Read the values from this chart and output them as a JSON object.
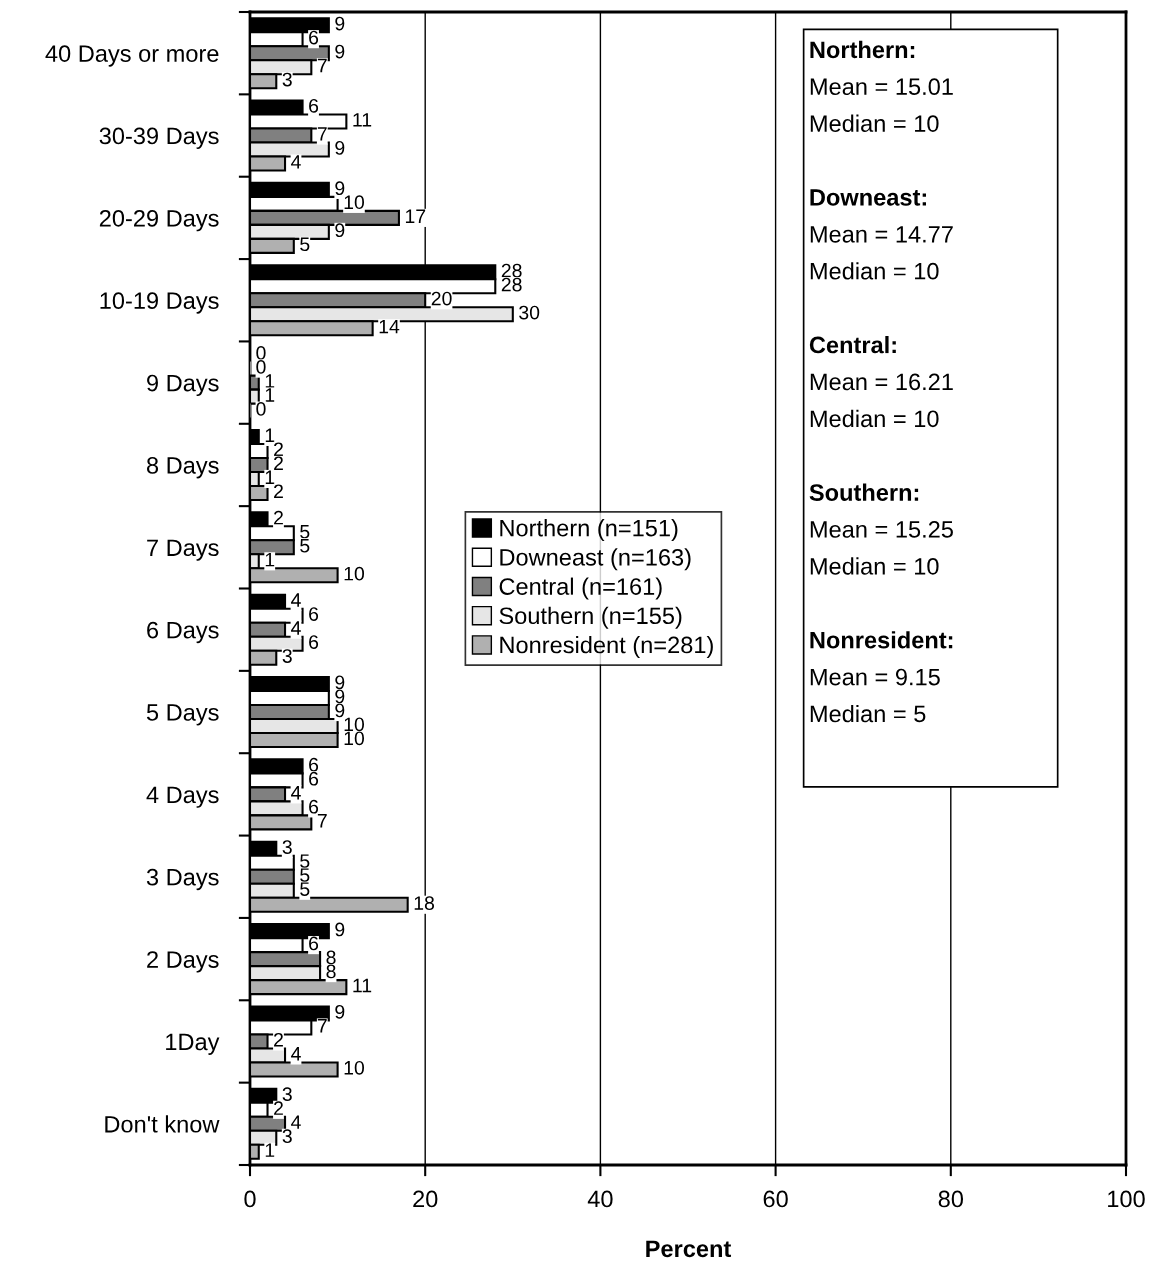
{
  "chart_data": {
    "type": "bar",
    "orientation": "horizontal",
    "xlabel": "Percent",
    "categories": [
      "40 Days or more",
      "30-39 Days",
      "20-29 Days",
      "10-19 Days",
      "9 Days",
      "8 Days",
      "7 Days",
      "6 Days",
      "5 Days",
      "4 Days",
      "3 Days",
      "2 Days",
      "1Day",
      "Don't know"
    ],
    "series": [
      {
        "name": "Northern (n=151)",
        "color": "#000000",
        "values": [
          9,
          6,
          9,
          28,
          0,
          1,
          2,
          4,
          9,
          6,
          3,
          9,
          9,
          3
        ]
      },
      {
        "name": "Downeast (n=163)",
        "color": "#ffffff",
        "values": [
          6,
          11,
          10,
          28,
          0,
          2,
          5,
          6,
          9,
          6,
          5,
          6,
          7,
          2
        ]
      },
      {
        "name": "Central (n=161)",
        "color": "#808080",
        "values": [
          9,
          7,
          17,
          20,
          1,
          2,
          5,
          4,
          9,
          4,
          5,
          8,
          2,
          4
        ]
      },
      {
        "name": "Southern (n=155)",
        "color": "#e6e6e6",
        "values": [
          7,
          9,
          9,
          30,
          1,
          1,
          1,
          6,
          10,
          6,
          5,
          8,
          4,
          3
        ]
      },
      {
        "name": "Nonresident (n=281)",
        "color": "#b0b0b0",
        "values": [
          3,
          4,
          5,
          14,
          0,
          2,
          10,
          3,
          10,
          7,
          18,
          11,
          10,
          1
        ]
      }
    ],
    "xlim": [
      0,
      100
    ],
    "xticks": [
      0,
      20,
      40,
      60,
      80,
      100
    ],
    "grid": "x",
    "legend": "center",
    "data_labels": true,
    "annotations": [
      "Northern:",
      "Mean = 15.01",
      "Median = 10",
      "Downeast:",
      "Mean = 14.77",
      "Median = 10",
      "Central:",
      "Mean = 16.21",
      "Median = 10",
      "Southern:",
      "Mean = 15.25",
      "Median = 10",
      "Nonresident:",
      "Mean = 9.15",
      "Median = 5"
    ]
  }
}
